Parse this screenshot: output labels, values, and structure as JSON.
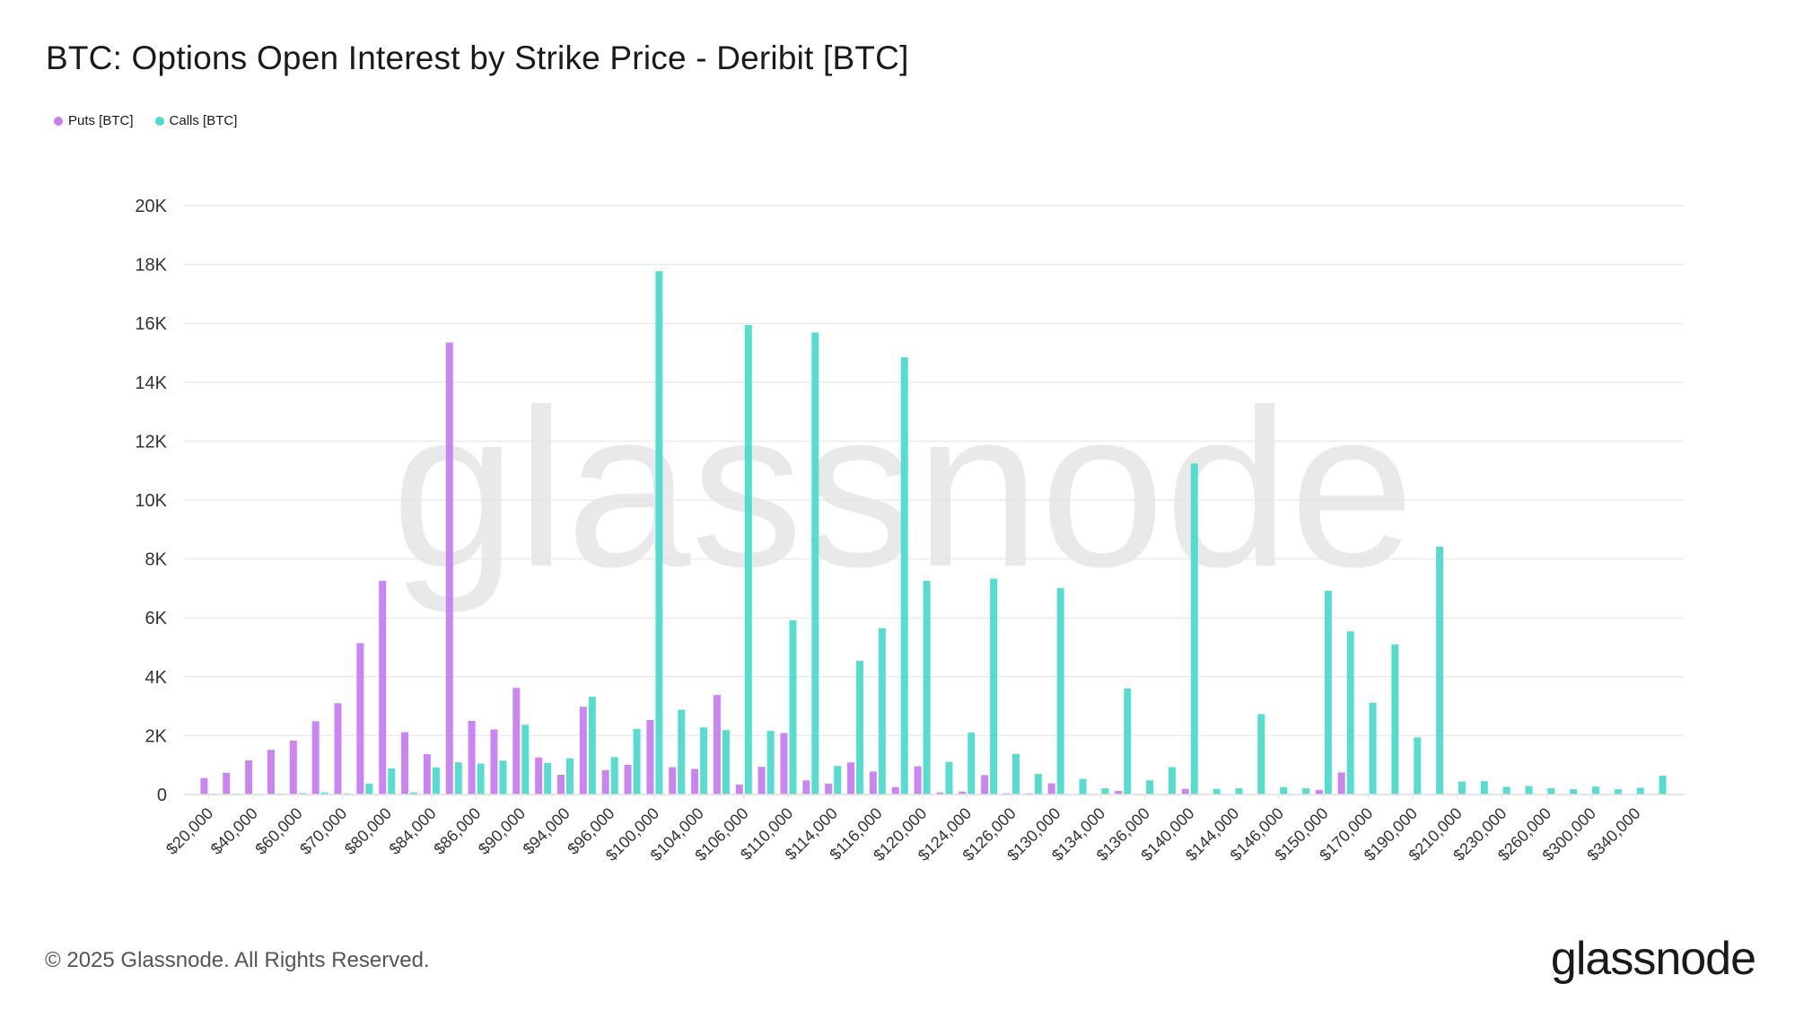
{
  "title": "BTC: Options Open Interest by Strike Price - Deribit [BTC]",
  "footer": "© 2025 Glassnode. All Rights Reserved.",
  "logo": "glassnode",
  "watermark": "glassnode",
  "colors": {
    "puts": "#c77ef2",
    "calls": "#4ddbcd",
    "grid": "#ebebeb",
    "watermark": "#e6e6e6"
  },
  "chart_data": {
    "type": "bar",
    "title": "BTC: Options Open Interest by Strike Price - Deribit [BTC]",
    "xlabel": "",
    "ylabel": "",
    "ylim": [
      0,
      20000
    ],
    "yticks": [
      0,
      2000,
      4000,
      6000,
      8000,
      10000,
      12000,
      14000,
      16000,
      18000,
      20000
    ],
    "ytick_labels": [
      "0",
      "2K",
      "4K",
      "6K",
      "8K",
      "10K",
      "12K",
      "14K",
      "16K",
      "18K",
      "20K"
    ],
    "grid": true,
    "legend": "top-left",
    "categories": [
      "$20,000",
      "$30,000",
      "$40,000",
      "$50,000",
      "$60,000",
      "$65,000",
      "$70,000",
      "$75,000",
      "$80,000",
      "$82,000",
      "$84,000",
      "$85,000",
      "$86,000",
      "$88,000",
      "$90,000",
      "$92,000",
      "$94,000",
      "$95,000",
      "$96,000",
      "$98,000",
      "$100,000",
      "$102,000",
      "$104,000",
      "$105,000",
      "$106,000",
      "$108,000",
      "$110,000",
      "$112,000",
      "$114,000",
      "$115,000",
      "$116,000",
      "$118,000",
      "$120,000",
      "$122,000",
      "$124,000",
      "$125,000",
      "$126,000",
      "$128,000",
      "$130,000",
      "$132,000",
      "$134,000",
      "$135,000",
      "$136,000",
      "$138,000",
      "$140,000",
      "$142,000",
      "$144,000",
      "$145,000",
      "$146,000",
      "$148,000",
      "$150,000",
      "$160,000",
      "$170,000",
      "$180,000",
      "$190,000",
      "$200,000",
      "$210,000",
      "$220,000",
      "$230,000",
      "$250,000",
      "$260,000",
      "$280,000",
      "$300,000",
      "$320,000",
      "$340,000",
      "$400,000"
    ],
    "tick_every": 2,
    "series": [
      {
        "name": "Puts [BTC]",
        "values": [
          560,
          740,
          1160,
          1520,
          1830,
          2490,
          3100,
          5140,
          7260,
          2120,
          1370,
          15350,
          2500,
          2210,
          3620,
          1260,
          670,
          2980,
          830,
          1010,
          2530,
          930,
          870,
          3380,
          340,
          940,
          2090,
          480,
          370,
          1090,
          780,
          250,
          960,
          70,
          100,
          660,
          40,
          40,
          380,
          0,
          0,
          120,
          20,
          0,
          190,
          0,
          0,
          0,
          0,
          0,
          160,
          750,
          20,
          10,
          0,
          20,
          0,
          0,
          0,
          0,
          0,
          0,
          10,
          10,
          0,
          20
        ]
      },
      {
        "name": "Calls [BTC]",
        "values": [
          30,
          30,
          20,
          30,
          50,
          70,
          40,
          370,
          890,
          70,
          920,
          1090,
          1050,
          1150,
          2370,
          1070,
          1230,
          3320,
          1270,
          2230,
          17770,
          2880,
          2280,
          2190,
          15950,
          2160,
          5920,
          15690,
          970,
          4540,
          5650,
          14850,
          7260,
          1110,
          2110,
          7330,
          1380,
          700,
          7010,
          530,
          210,
          3600,
          480,
          930,
          11240,
          190,
          210,
          2730,
          250,
          210,
          6920,
          5540,
          3120,
          5100,
          1940,
          8420,
          440,
          450,
          260,
          290,
          210,
          180,
          270,
          180,
          230,
          640
        ]
      }
    ]
  }
}
